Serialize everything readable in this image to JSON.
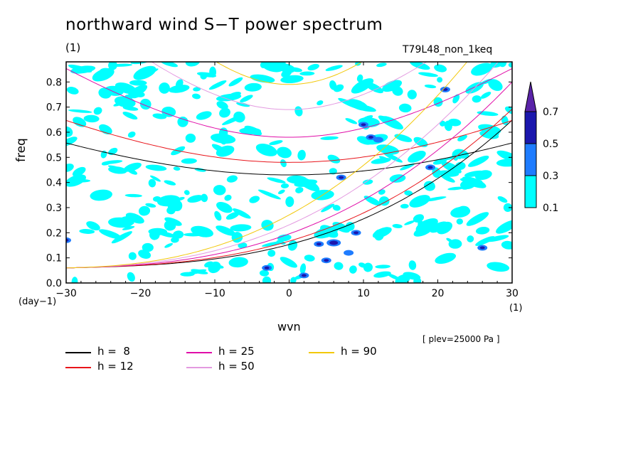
{
  "title": "northward wind S−T power spectrum",
  "subtitle_left": "(1)",
  "subtitle_right": "T79L48_non_1keq",
  "ylabel": "freq",
  "xlabel": "wvn",
  "y_unit": "(day−1)",
  "x_unit": "(1)",
  "level_note": "[ plev=25000 Pa ]",
  "chart_data": {
    "type": "heatmap",
    "xlabel": "wvn",
    "ylabel": "freq",
    "xlim": [
      -30,
      30
    ],
    "ylim": [
      0,
      0.88
    ],
    "x_ticks": [
      -30,
      -20,
      -10,
      0,
      10,
      20,
      30
    ],
    "x_tick_labels": [
      "−30",
      "−20",
      "−10",
      "0",
      "10",
      "20",
      "30"
    ],
    "y_ticks": [
      0.0,
      0.1,
      0.2,
      0.3,
      0.4,
      0.5,
      0.6,
      0.7,
      0.8
    ],
    "y_tick_labels": [
      "0.0",
      "0.1",
      "0.2",
      "0.3",
      "0.4",
      "0.5",
      "0.6",
      "0.7",
      "0.8"
    ],
    "contour_levels": [
      0.1,
      0.3,
      0.5,
      0.7
    ],
    "colorbar_labels": [
      "0.1",
      "0.3",
      "0.5",
      "0.7"
    ],
    "colorbar_colors": [
      "#00ffff",
      "#1e7cff",
      "#1b17ad",
      "#5a23a8"
    ],
    "dispersion_curves": [
      {
        "label": "h =  8",
        "h": 8,
        "color": "#000000"
      },
      {
        "label": "h = 12",
        "h": 12,
        "color": "#e8141a"
      },
      {
        "label": "h = 25",
        "h": 25,
        "color": "#e00da8"
      },
      {
        "label": "h = 50",
        "h": 50,
        "color": "#e39ae0"
      },
      {
        "label": "h = 90",
        "h": 90,
        "color": "#f2c80a"
      }
    ],
    "curve_minima": [
      {
        "h": 8,
        "wvn": 0,
        "freq": 0.43
      },
      {
        "h": 12,
        "wvn": 0,
        "freq": 0.48
      },
      {
        "h": 25,
        "wvn": 0,
        "freq": 0.58
      },
      {
        "h": 50,
        "wvn": 0,
        "freq": 0.69
      },
      {
        "h": 90,
        "wvn": 0,
        "freq": 0.79
      }
    ],
    "grid": false,
    "legend_position": "bottom"
  }
}
